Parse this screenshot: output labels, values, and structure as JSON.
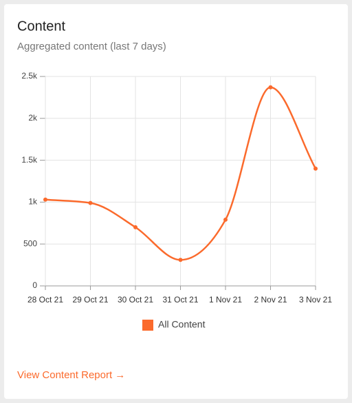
{
  "header": {
    "title": "Content",
    "subtitle": "Aggregated content (last 7 days)"
  },
  "chart_data": {
    "type": "line",
    "categories": [
      "28 Oct 21",
      "29 Oct 21",
      "30 Oct 21",
      "31 Oct 21",
      "1 Nov 21",
      "2 Nov 21",
      "3 Nov 21"
    ],
    "series": [
      {
        "name": "All Content",
        "color": "#fb6a2c",
        "values": [
          1030,
          990,
          700,
          310,
          790,
          2370,
          1400
        ]
      }
    ],
    "ylim": [
      0,
      2500
    ],
    "yticks": [
      0,
      500,
      {
        "value": 1000,
        "label": "1k"
      },
      {
        "value": 1500,
        "label": "1.5k"
      },
      {
        "value": 2000,
        "label": "2k"
      },
      {
        "value": 2500,
        "label": "2.5k"
      }
    ],
    "grid": true,
    "smooth": true
  },
  "footer": {
    "link": "View Content Report →"
  }
}
